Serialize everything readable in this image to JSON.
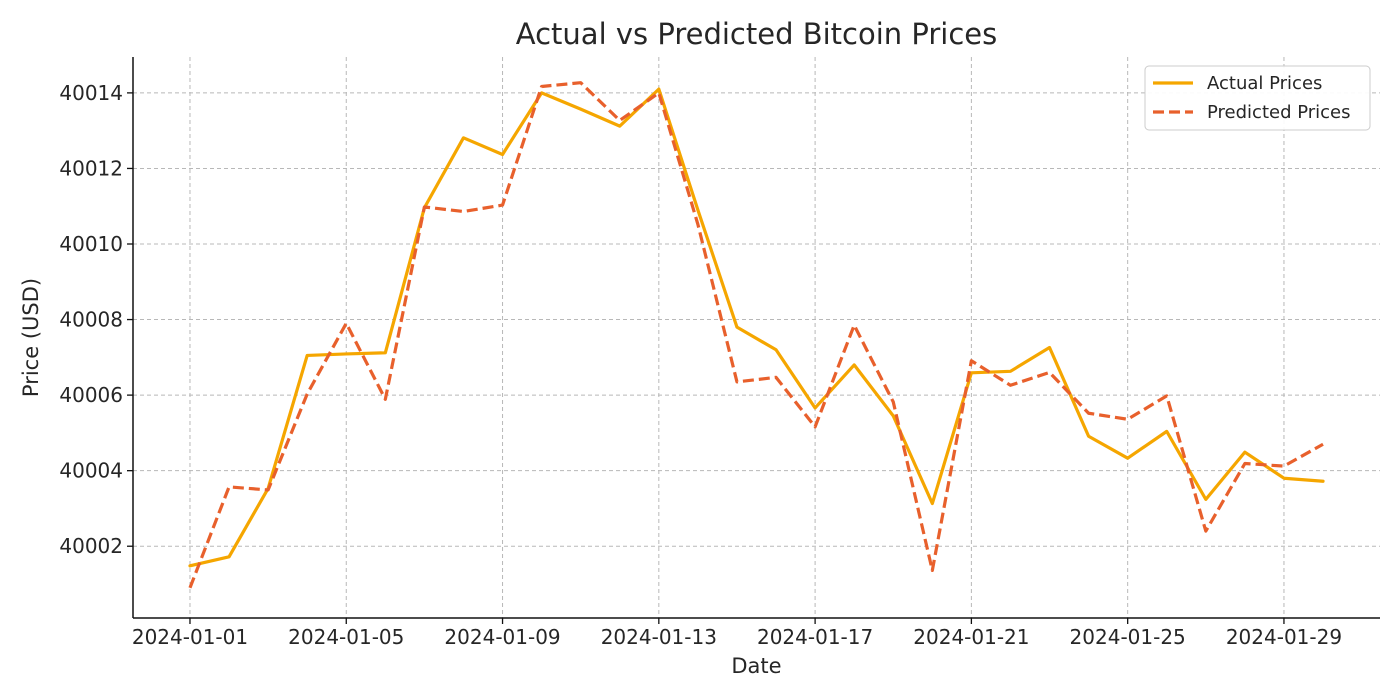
{
  "chart_data": {
    "type": "line",
    "title": "Actual vs Predicted Bitcoin Prices",
    "xlabel": "Date",
    "ylabel": "Price (USD)",
    "x": [
      "2024-01-01",
      "2024-01-02",
      "2024-01-03",
      "2024-01-04",
      "2024-01-05",
      "2024-01-06",
      "2024-01-07",
      "2024-01-08",
      "2024-01-09",
      "2024-01-10",
      "2024-01-11",
      "2024-01-12",
      "2024-01-13",
      "2024-01-14",
      "2024-01-15",
      "2024-01-16",
      "2024-01-17",
      "2024-01-18",
      "2024-01-19",
      "2024-01-20",
      "2024-01-21",
      "2024-01-22",
      "2024-01-23",
      "2024-01-24",
      "2024-01-25",
      "2024-01-26",
      "2024-01-27",
      "2024-01-28",
      "2024-01-29",
      "2024-01-30"
    ],
    "xticks": [
      "2024-01-01",
      "2024-01-05",
      "2024-01-09",
      "2024-01-13",
      "2024-01-17",
      "2024-01-21",
      "2024-01-25",
      "2024-01-29"
    ],
    "yticks": [
      40002,
      40004,
      40006,
      40008,
      40010,
      40012,
      40014
    ],
    "xlim": [
      "2023-12-30T13:00:00",
      "2024-01-31T11:00:00"
    ],
    "ylim": [
      40000.1,
      40014.95
    ],
    "grid": true,
    "legend_position": "top-right",
    "series": [
      {
        "name": "Actual Prices",
        "color": "#f5a600",
        "line_style": "solid",
        "values": [
          40001.48,
          40001.72,
          40003.53,
          40007.05,
          40007.09,
          40007.12,
          40010.96,
          40012.81,
          40012.37,
          40014.0,
          40013.57,
          40013.12,
          40014.1,
          40010.9,
          40007.8,
          40007.2,
          40005.66,
          40006.8,
          40005.45,
          40003.13,
          40006.59,
          40006.63,
          40007.26,
          40004.91,
          40004.33,
          40005.04,
          40003.24,
          40004.49,
          40003.8,
          40003.72
        ]
      },
      {
        "name": "Predicted Prices",
        "color": "#e8602c",
        "line_style": "dashed",
        "values": [
          40000.9,
          40003.57,
          40003.49,
          40006.03,
          40007.9,
          40005.89,
          40010.98,
          40010.86,
          40011.03,
          40014.17,
          40014.27,
          40013.27,
          40014.0,
          40010.52,
          40006.35,
          40006.47,
          40005.16,
          40007.85,
          40005.82,
          40001.36,
          40006.91,
          40006.26,
          40006.6,
          40005.52,
          40005.36,
          40005.98,
          40002.4,
          40004.19,
          40004.12,
          40004.7
        ]
      }
    ]
  }
}
